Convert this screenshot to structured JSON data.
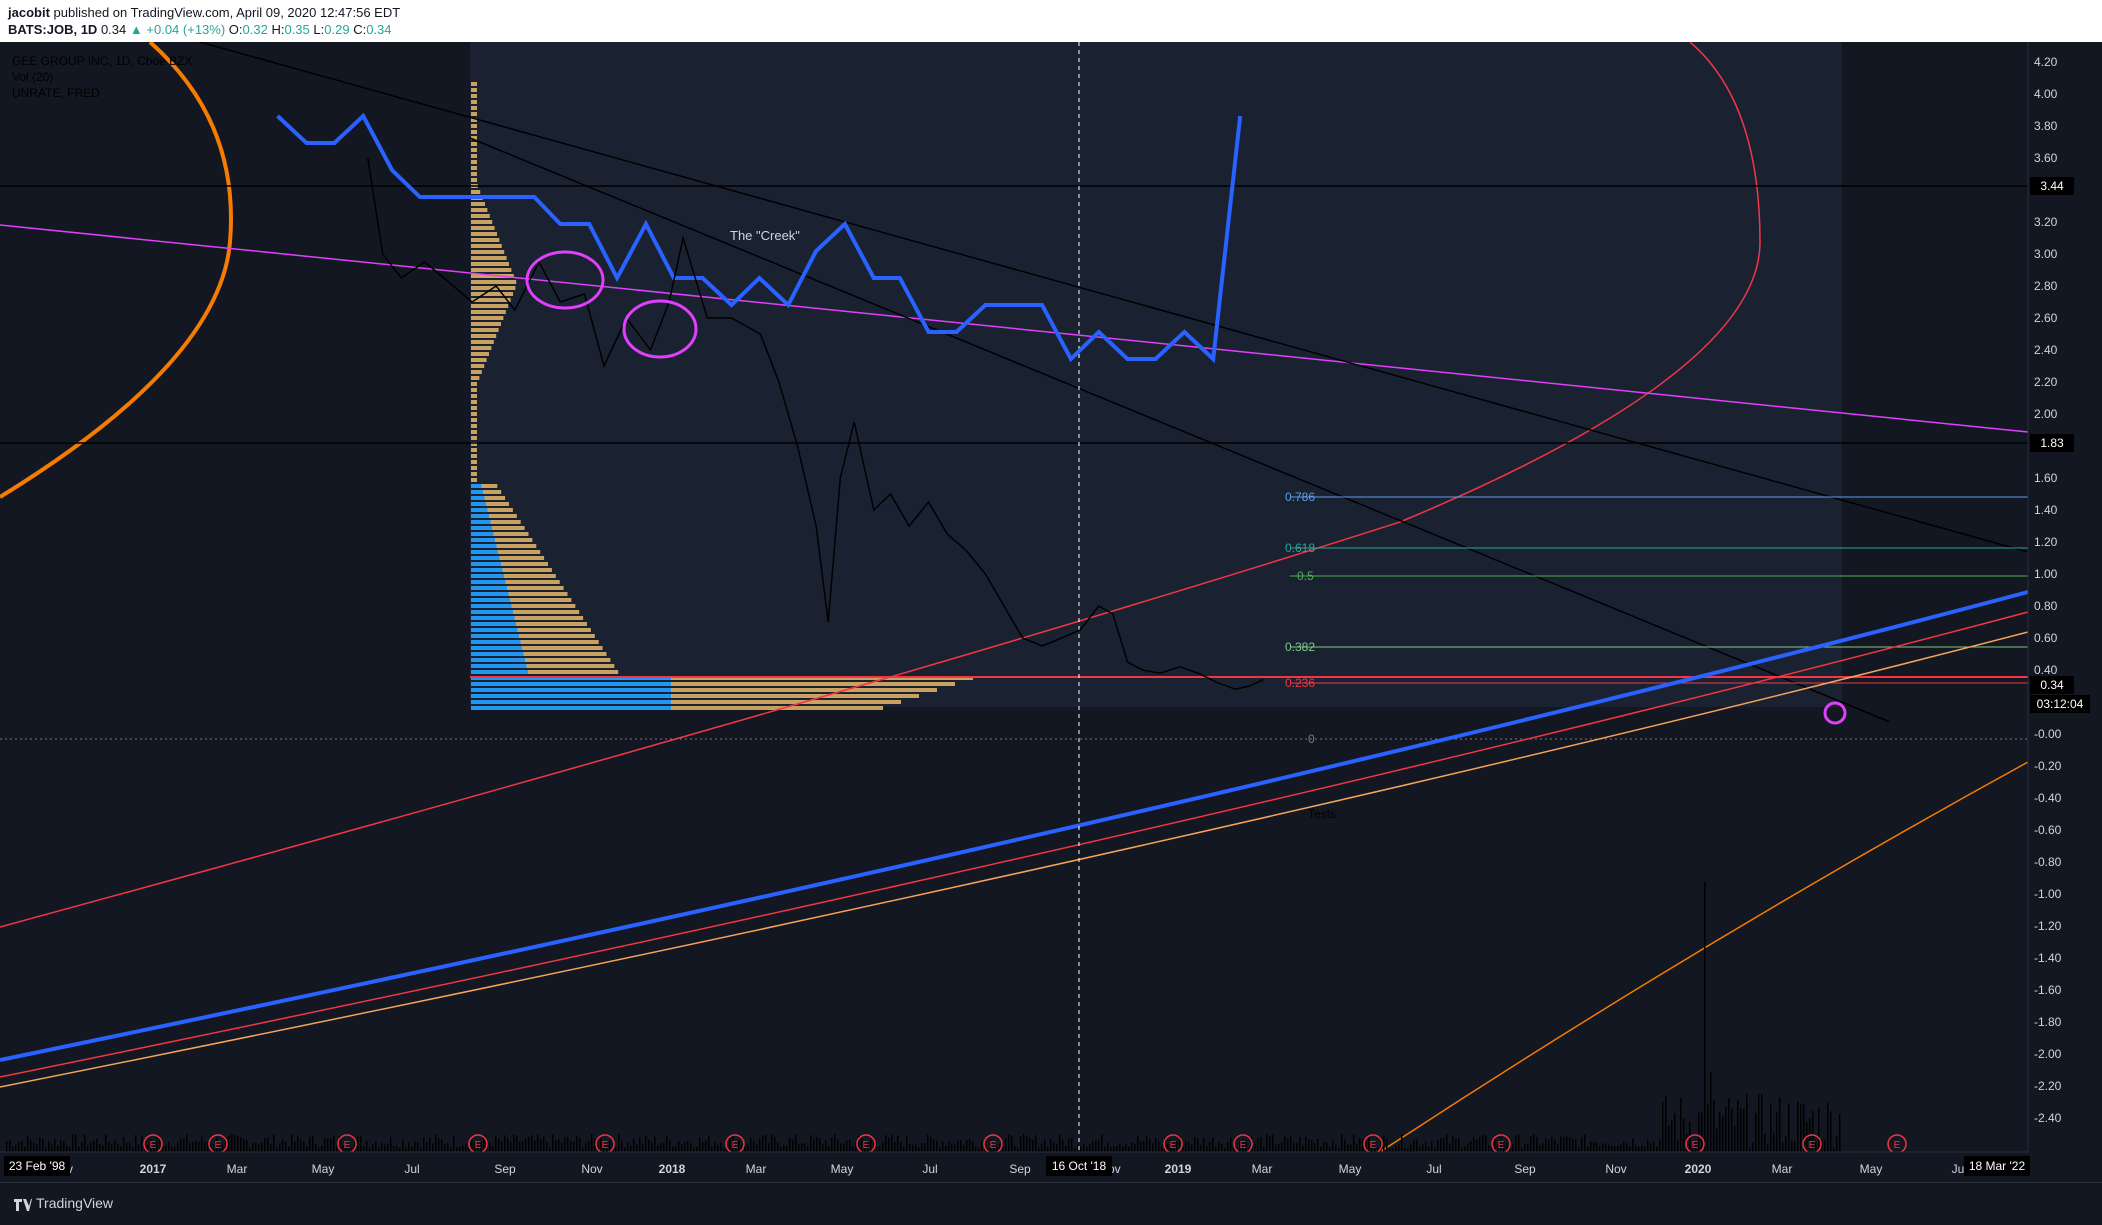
{
  "header": {
    "author": "jacobit",
    "published_text": "published on TradingView.com, April 09, 2020 12:47:56 EDT",
    "symbol": "BATS:JOB, 1D",
    "price": "0.34",
    "change": "+0.04 (+13%)",
    "ohlc": {
      "o_label": "O:",
      "o": "0.32",
      "h_label": "H:",
      "h": "0.35",
      "l_label": "L:",
      "l": "0.29",
      "c_label": "C:",
      "c": "0.34"
    }
  },
  "legend": {
    "main": "GEE GROUP INC, 1D, Cboe BZX",
    "vol": "Vol (20)",
    "unrate": "UNRATE, FRED"
  },
  "annotations": {
    "creek": "The \"Creek\"",
    "tests": "Tests",
    "fib": [
      "0.786",
      "0.618",
      "0.5",
      "0.382",
      "0.236",
      "0"
    ]
  },
  "earnings_marker": "E",
  "price_axis": {
    "ticks": [
      "4.20",
      "4.00",
      "3.80",
      "3.60",
      "3.40",
      "3.20",
      "3.00",
      "2.80",
      "2.60",
      "2.40",
      "2.20",
      "2.00",
      "1.80",
      "1.60",
      "1.40",
      "1.20",
      "1.00",
      "0.80",
      "0.60",
      "0.40",
      "0.20",
      "-0.00",
      "-0.20",
      "-0.40",
      "-0.60",
      "-0.80",
      "-1.00",
      "-1.20",
      "-1.40",
      "-1.60",
      "-1.80",
      "-2.00",
      "-2.20",
      "-2.40"
    ],
    "labels": {
      "level_344": "3.44",
      "level_183": "1.83",
      "current_price": "0.34",
      "countdown": "03:12:04"
    }
  },
  "time_axis": {
    "ticks": [
      "v",
      "2017",
      "Mar",
      "May",
      "Jul",
      "Sep",
      "Nov",
      "2018",
      "Mar",
      "May",
      "Jul",
      "Sep",
      "Nov",
      "2019",
      "Mar",
      "May",
      "Jul",
      "Sep",
      "Nov",
      "2020",
      "Mar",
      "May",
      "Ju"
    ],
    "start_label": "23 Feb '98",
    "cursor_label": "16 Oct '18",
    "end_label": "18 Mar '22"
  },
  "footer": {
    "brand": "TradingView"
  },
  "colors": {
    "background": "#131722",
    "blue": "#2962ff",
    "magenta": "#e040fb",
    "orange": "#f57c00",
    "red": "#f23645",
    "volume_blue": "#2196f3",
    "volume_gold": "#f5c26b"
  },
  "chart_data": {
    "type": "line",
    "title": "GEE GROUP INC, 1D, Cboe BZX",
    "ylim": [
      -2.5,
      4.3
    ],
    "series": [
      {
        "name": "GEE GROUP INC, 1D, Cboe BZX",
        "x": [
          "2017-08-20",
          "2017-09-05",
          "2017-09-25",
          "2017-10-20",
          "2017-11-20",
          "2017-12-10",
          "2018-01-05",
          "2018-01-25",
          "2018-02-20",
          "2018-03-15",
          "2018-04-10",
          "2018-05-01",
          "2018-05-25",
          "2018-06-20",
          "2018-07-10",
          "2018-07-25",
          "2018-08-20",
          "2018-09-15",
          "2018-10-16",
          "2018-11-05",
          "2018-11-25",
          "2018-12-15",
          "2018-12-28",
          "2019-01-10",
          "2019-01-25",
          "2019-02-15",
          "2019-03-05",
          "2019-03-25",
          "2019-04-15",
          "2019-05-05",
          "2019-05-25",
          "2019-06-15",
          "2019-07-05",
          "2019-07-25",
          "2019-08-15",
          "2019-09-05",
          "2019-09-25",
          "2019-10-15",
          "2019-10-30",
          "2019-11-15",
          "2019-12-01",
          "2019-12-20",
          "2020-01-10",
          "2020-01-30",
          "2020-02-20",
          "2020-03-10",
          "2020-03-25",
          "2020-04-09"
        ],
        "values": [
          3.6,
          3.0,
          2.85,
          2.95,
          2.8,
          2.7,
          2.8,
          2.65,
          2.95,
          2.7,
          2.75,
          2.3,
          2.6,
          2.4,
          2.7,
          3.1,
          2.6,
          2.6,
          2.5,
          2.2,
          1.8,
          1.3,
          0.7,
          1.6,
          1.95,
          1.4,
          1.5,
          1.3,
          1.45,
          1.25,
          1.15,
          1.0,
          0.8,
          0.6,
          0.55,
          0.6,
          0.65,
          0.8,
          0.75,
          0.45,
          0.4,
          0.38,
          0.42,
          0.38,
          0.32,
          0.28,
          0.3,
          0.34
        ]
      },
      {
        "name": "UNRATE, FRED",
        "x": [
          "2017-05",
          "2017-06",
          "2017-07",
          "2017-08",
          "2017-09",
          "2017-10",
          "2017-11",
          "2017-12",
          "2018-01",
          "2018-02",
          "2018-03",
          "2018-04",
          "2018-05",
          "2018-06",
          "2018-07",
          "2018-08",
          "2018-09",
          "2018-10",
          "2018-11",
          "2018-12",
          "2019-01",
          "2019-02",
          "2019-03",
          "2019-04",
          "2019-05",
          "2019-06",
          "2019-07",
          "2019-08",
          "2019-09",
          "2019-10",
          "2019-11",
          "2019-12",
          "2020-01",
          "2020-02",
          "2020-03"
        ],
        "values": [
          4.4,
          4.3,
          4.3,
          4.4,
          4.2,
          4.1,
          4.1,
          4.1,
          4.1,
          4.1,
          4.0,
          4.0,
          3.8,
          4.0,
          3.8,
          3.8,
          3.7,
          3.8,
          3.7,
          3.9,
          4.0,
          3.8,
          3.8,
          3.6,
          3.6,
          3.7,
          3.7,
          3.7,
          3.5,
          3.6,
          3.5,
          3.5,
          3.6,
          3.5,
          4.4
        ]
      }
    ],
    "horizontal_levels": [
      3.44,
      1.83,
      0.34
    ]
  }
}
